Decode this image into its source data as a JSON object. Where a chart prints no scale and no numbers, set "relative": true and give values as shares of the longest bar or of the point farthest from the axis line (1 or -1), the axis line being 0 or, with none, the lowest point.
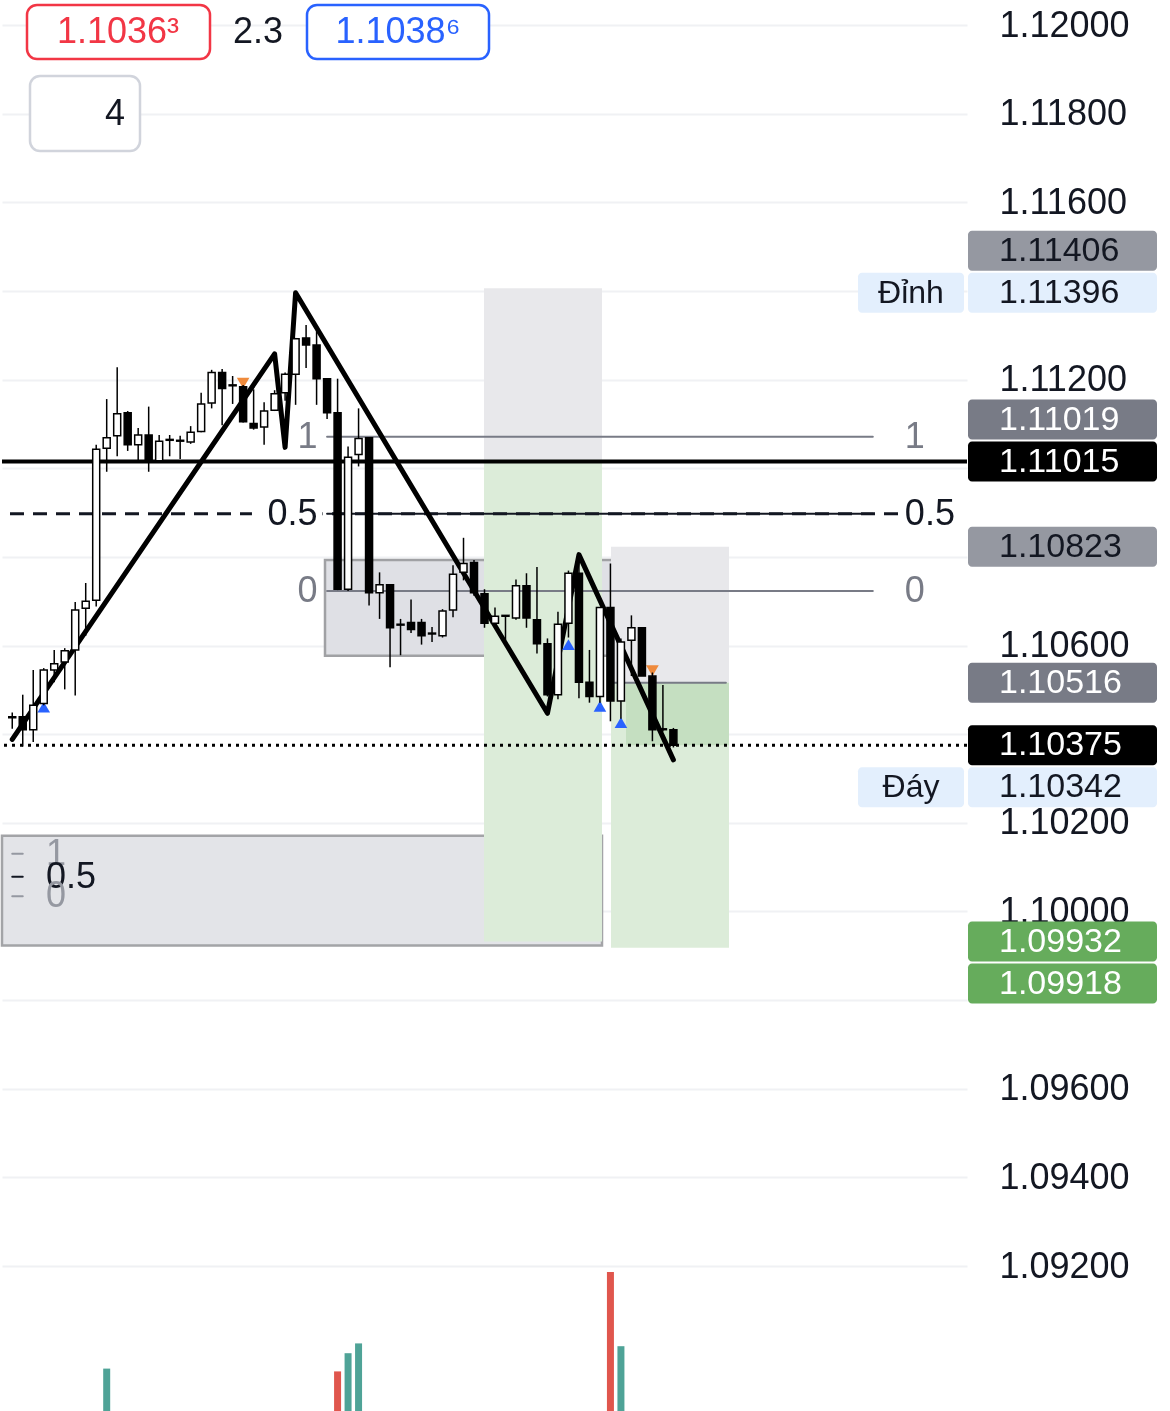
{
  "chart_data": [
    {
      "type": "candlestick",
      "categories": [
        null,
        null,
        null,
        null,
        null,
        null,
        null,
        null,
        null,
        null,
        null,
        null,
        null,
        null,
        null,
        null,
        null,
        null,
        null,
        null,
        null,
        null,
        null,
        null,
        null,
        null,
        null,
        null,
        null,
        null,
        null,
        null,
        null,
        null,
        null,
        null,
        null,
        null,
        null,
        null,
        null,
        null,
        null,
        null,
        null,
        null,
        null,
        null,
        null,
        null,
        null,
        null,
        null,
        null,
        null,
        null,
        null,
        null,
        null,
        null,
        null,
        null,
        null,
        null,
        null,
        null,
        null,
        null,
        null,
        null,
        null,
        null,
        null,
        null,
        null,
        null,
        null,
        null,
        null,
        null,
        null,
        null,
        null,
        null,
        null,
        null,
        null,
        null,
        null,
        null,
        null
      ],
      "ohlc": [
        [
          1.10437,
          1.10449,
          1.10412,
          1.10439
        ],
        [
          1.10439,
          1.10489,
          1.10372,
          1.1041
        ],
        [
          1.1041,
          1.10545,
          1.10382,
          1.10465
        ],
        [
          1.10469,
          1.10549,
          1.10465,
          1.10545
        ],
        [
          1.10545,
          1.1059,
          1.10517,
          1.10559
        ],
        [
          1.10563,
          1.10594,
          1.10501,
          1.10588
        ],
        [
          1.1059,
          1.10698,
          1.10487,
          1.1068
        ],
        [
          1.10684,
          1.10741,
          1.10622,
          1.107
        ],
        [
          1.10702,
          1.11053,
          1.10688,
          1.11043
        ],
        [
          1.11045,
          1.11156,
          1.10992,
          1.11069
        ],
        [
          1.11073,
          1.11228,
          1.11027,
          1.11123
        ],
        [
          1.11125,
          1.11129,
          1.11039,
          1.11053
        ],
        [
          1.11053,
          1.11091,
          1.11017,
          1.11075
        ],
        [
          1.11075,
          1.11139,
          1.10992,
          1.11017
        ],
        [
          1.11017,
          1.11075,
          1.11017,
          1.11061
        ],
        [
          1.11063,
          1.11075,
          1.11027,
          1.11065
        ],
        [
          1.11061,
          1.11073,
          1.11021,
          1.11063
        ],
        [
          1.11059,
          1.11095,
          1.11055,
          1.11081
        ],
        [
          1.11083,
          1.1117,
          1.11081,
          1.11145
        ],
        [
          1.11147,
          1.11222,
          1.11135,
          1.11216
        ],
        [
          1.11216,
          1.11224,
          1.11097,
          1.1118
        ],
        [
          1.11188,
          1.11208,
          1.11145,
          1.11186
        ],
        [
          1.11184,
          1.11188,
          1.11103,
          1.11105
        ],
        [
          1.11101,
          1.11178,
          1.11087,
          1.11091
        ],
        [
          1.11093,
          1.11149,
          1.11053,
          1.11129
        ],
        [
          1.11131,
          1.11176,
          1.11129,
          1.11168
        ],
        [
          1.1117,
          1.11216,
          1.11152,
          1.11212
        ],
        [
          1.11212,
          1.11294,
          1.11143,
          1.11292
        ],
        [
          1.11294,
          1.11323,
          1.11226,
          1.11278
        ],
        [
          1.11278,
          1.11309,
          1.11143,
          1.11202
        ],
        [
          1.11202,
          1.11202,
          1.11111,
          1.11125
        ],
        [
          1.11125,
          1.11202,
          1.10725,
          1.10727
        ],
        [
          1.10727,
          1.11049,
          1.10723,
          1.11025
        ],
        [
          1.11031,
          1.11135,
          1.11004,
          1.11067
        ],
        [
          1.11069,
          1.11069,
          1.1069,
          1.10719
        ],
        [
          1.10719,
          1.10765,
          1.1066,
          1.10737
        ],
        [
          1.10737,
          1.10737,
          1.10551,
          1.1064
        ],
        [
          1.10646,
          1.1066,
          1.10578,
          1.10648
        ],
        [
          1.10652,
          1.10704,
          1.10628,
          1.10636
        ],
        [
          1.10652,
          1.1066,
          1.10602,
          1.10622
        ],
        [
          1.10626,
          1.10642,
          1.10608,
          1.10628
        ],
        [
          1.10622,
          1.10682,
          1.10618,
          1.10678
        ],
        [
          1.1068,
          1.10781,
          1.10664,
          1.10761
        ],
        [
          1.10765,
          1.10843,
          1.10747,
          1.10785
        ],
        [
          1.10787,
          1.10793,
          1.10712,
          1.10719
        ],
        [
          1.10717,
          1.10727,
          1.1064,
          1.1065
        ],
        [
          1.1065,
          1.10686,
          1.10648,
          1.10666
        ],
        [
          1.10666,
          1.10668,
          1.10612,
          1.10668
        ],
        [
          1.10662,
          1.10749,
          1.10658,
          1.10735
        ],
        [
          1.10735,
          1.10763,
          1.1064,
          1.10662
        ],
        [
          1.10658,
          1.10777,
          1.10582,
          1.10604
        ],
        [
          1.10604,
          1.10616,
          1.10485,
          1.10489
        ],
        [
          1.10489,
          1.10676,
          1.10479,
          1.10648
        ],
        [
          1.1065,
          1.10769,
          1.10618,
          1.10763
        ],
        [
          1.10763,
          1.10805,
          1.10481,
          1.10517
        ],
        [
          1.10517,
          1.1059,
          1.10471,
          1.10485
        ],
        [
          1.10485,
          1.10686,
          1.10471,
          1.10686
        ],
        [
          1.10686,
          1.10785,
          1.10429,
          1.10475
        ],
        [
          1.10475,
          1.10616,
          1.10435,
          1.10608
        ],
        [
          1.10612,
          1.10668,
          1.10531,
          1.1064
        ],
        [
          1.1064,
          1.1064,
          1.10531,
          1.10531
        ],
        [
          1.10531,
          1.10539,
          1.10384,
          1.1041
        ],
        [
          1.10412,
          1.10511,
          1.10406,
          1.1041
        ],
        [
          1.1041,
          1.10414,
          1.1037,
          1.10375
        ],
        null,
        null,
        null,
        null,
        null,
        null,
        null,
        null,
        null,
        null,
        null,
        null,
        null,
        null,
        null,
        null,
        null,
        null,
        null,
        null,
        null,
        null,
        null,
        null,
        null,
        null,
        null
      ],
      "colors": [
        "#ffffff",
        "#000000",
        "#ffffff",
        "#ffffff",
        "#ffffff",
        "#ffffff",
        "#ffffff",
        "#ffffff",
        "#ffffff",
        "#ffffff",
        "#ffffff",
        "#000000",
        "#ffffff",
        "#000000",
        "#ffffff",
        "#ffffff",
        "#ffffff",
        "#ffffff",
        "#ffffff",
        "#ffffff",
        "#000000",
        "#000000",
        "#000000",
        "#000000",
        "#ffffff",
        "#ffffff",
        "#ffffff",
        "#ffffff",
        "#000000",
        "#000000",
        "#000000",
        "#000000",
        "#ffffff",
        "#ffffff",
        "#000000",
        "#ffffff",
        "#000000",
        "#ffffff",
        "#000000",
        "#000000",
        "#ffffff",
        "#ffffff",
        "#ffffff",
        "#ffffff",
        "#000000",
        "#000000",
        "#ffffff",
        "#ffffff",
        "#ffffff",
        "#000000",
        "#000000",
        "#000000",
        "#ffffff",
        "#ffffff",
        "#000000",
        "#000000",
        "#ffffff",
        "#000000",
        "#ffffff",
        "#ffffff",
        "#000000",
        "#000000",
        "#000000",
        "#000000",
        null,
        null,
        null,
        null,
        null,
        null,
        null,
        null,
        null,
        null,
        null,
        null,
        null,
        null,
        null,
        null,
        null,
        null,
        null,
        null,
        null,
        null,
        null,
        null,
        null,
        null,
        null
      ],
      "ylim": [
        1.092,
        1.12
      ],
      "yticks": [
        {
          "value": 1.092,
          "label": "1.09200"
        },
        {
          "value": 1.094,
          "label": "1.09400"
        },
        {
          "value": 1.096,
          "label": "1.09600"
        },
        {
          "value": 1.098,
          "label": null
        },
        {
          "value": 1.1,
          "label": "1.10000"
        },
        {
          "value": 1.102,
          "label": "1.10200"
        },
        {
          "value": 1.104,
          "label": null
        },
        {
          "value": 1.106,
          "label": "1.10600"
        },
        {
          "value": 1.108,
          "label": null
        },
        {
          "value": 1.11,
          "label": null
        },
        {
          "value": 1.112,
          "label": "1.11200"
        },
        {
          "value": 1.114,
          "label": null
        },
        {
          "value": 1.116,
          "label": "1.11600"
        },
        {
          "value": 1.118,
          "label": "1.11800"
        },
        {
          "value": 1.12,
          "label": "1.12000"
        }
      ],
      "grid": "y",
      "tick_labels": "y",
      "ref_lines": [
        {
          "axis": "y",
          "value": 1.11015,
          "label": "1.11015",
          "color": "#000000",
          "line_style": "solid"
        },
        {
          "axis": "y",
          "value": 1.10897,
          "color": "#131722",
          "line_style": "dashed"
        },
        {
          "axis": "y",
          "value": 1.10375,
          "label": "1.10375",
          "color": "#000000",
          "line_style": "dotted"
        }
      ],
      "bands": [
        {
          "axis": "y",
          "from": 1.09923,
          "to": 1.10171,
          "color": "#e3e4e8"
        },
        {
          "axis": "y",
          "from": 1.10577,
          "to": 1.10793,
          "color": "#dfe0e5"
        },
        {
          "axis": "y",
          "from": 1.11019,
          "to": 1.11406,
          "color": "#e8e8eb"
        },
        {
          "axis": "y",
          "from": 1.09932,
          "to": 1.11019,
          "color": "#dcecd9"
        },
        {
          "axis": "y",
          "from": 1.10516,
          "to": 1.10823,
          "color": "#e8e8eb"
        },
        {
          "axis": "y",
          "from": 1.09918,
          "to": 1.10516,
          "color": "#dcecd9"
        },
        {
          "axis": "y",
          "from": 1.10375,
          "to": 1.10516,
          "color": "#c5dfc1"
        }
      ],
      "series": [
        {
          "type": "line",
          "color": "#787b86",
          "values": [
            null,
            null,
            null,
            null,
            null,
            null,
            null,
            null,
            null,
            null,
            null,
            null,
            null,
            null,
            null,
            null,
            null,
            null,
            null,
            null,
            null,
            null,
            null,
            null,
            null,
            null,
            null,
            null,
            null,
            null,
            null,
            null,
            null,
            null,
            null,
            null,
            null,
            null,
            null,
            null,
            null,
            null,
            null,
            null,
            null,
            null,
            null,
            null,
            null,
            null,
            null,
            null,
            null,
            null,
            null,
            null,
            null,
            1.10516,
            1.10516,
            1.10516,
            1.10516,
            1.10516,
            1.10516,
            1.10516,
            1.10516,
            1.10516,
            1.10516,
            1.10516,
            1.10516,
            null,
            null,
            null,
            null,
            null,
            null,
            null,
            null,
            null,
            null,
            null,
            null,
            null,
            null,
            null,
            null,
            null,
            null,
            null,
            null,
            null,
            null
          ]
        },
        {
          "type": "line",
          "name": "1",
          "color": "#787b86",
          "values": [
            null,
            null,
            null,
            null,
            null,
            null,
            null,
            null,
            null,
            null,
            null,
            null,
            null,
            null,
            null,
            null,
            null,
            null,
            null,
            null,
            null,
            null,
            null,
            null,
            null,
            null,
            null,
            null,
            null,
            null,
            1.11071,
            1.11071,
            1.11071,
            1.11071,
            1.11071,
            1.11071,
            1.11071,
            1.11071,
            1.11071,
            1.11071,
            1.11071,
            1.11071,
            1.11071,
            1.11071,
            1.11071,
            1.11071,
            1.11071,
            1.11071,
            1.11071,
            1.11071,
            1.11071,
            1.11071,
            1.11071,
            1.11071,
            1.11071,
            1.11071,
            1.11071,
            1.11071,
            1.11071,
            1.11071,
            1.11071,
            1.11071,
            1.11071,
            1.11071,
            1.11071,
            1.11071,
            1.11071,
            1.11071,
            1.11071,
            1.11071,
            1.11071,
            1.11071,
            1.11071,
            1.11071,
            1.11071,
            1.11071,
            1.11071,
            1.11071,
            1.11071,
            1.11071,
            1.11071,
            1.11071,
            1.11071,
            null,
            null,
            null,
            null,
            null,
            null,
            null,
            null
          ]
        },
        {
          "type": "line",
          "name": "0.5",
          "color": "#131722",
          "values": [
            null,
            null,
            null,
            null,
            null,
            null,
            null,
            null,
            null,
            null,
            null,
            null,
            null,
            null,
            null,
            null,
            null,
            null,
            null,
            null,
            null,
            null,
            null,
            null,
            null,
            null,
            null,
            null,
            null,
            null,
            1.10897,
            1.10897,
            1.10897,
            1.10897,
            1.10897,
            1.10897,
            1.10897,
            1.10897,
            1.10897,
            1.10897,
            1.10897,
            1.10897,
            1.10897,
            1.10897,
            1.10897,
            1.10897,
            1.10897,
            1.10897,
            1.10897,
            1.10897,
            1.10897,
            1.10897,
            1.10897,
            1.10897,
            1.10897,
            1.10897,
            1.10897,
            1.10897,
            1.10897,
            1.10897,
            1.10897,
            1.10897,
            1.10897,
            1.10897,
            1.10897,
            1.10897,
            1.10897,
            1.10897,
            1.10897,
            1.10897,
            1.10897,
            1.10897,
            1.10897,
            1.10897,
            1.10897,
            1.10897,
            1.10897,
            1.10897,
            1.10897,
            1.10897,
            1.10897,
            1.10897,
            1.10897,
            null,
            null,
            null,
            null,
            null,
            null,
            null,
            null
          ]
        },
        {
          "type": "line",
          "name": "0",
          "color": "#787b86",
          "values": [
            null,
            null,
            null,
            null,
            null,
            null,
            null,
            null,
            null,
            null,
            null,
            null,
            null,
            null,
            null,
            null,
            null,
            null,
            null,
            null,
            null,
            null,
            null,
            null,
            null,
            null,
            null,
            null,
            null,
            null,
            1.10723,
            1.10723,
            1.10723,
            1.10723,
            1.10723,
            1.10723,
            1.10723,
            1.10723,
            1.10723,
            1.10723,
            1.10723,
            1.10723,
            1.10723,
            1.10723,
            1.10723,
            1.10723,
            1.10723,
            1.10723,
            1.10723,
            1.10723,
            1.10723,
            1.10723,
            1.10723,
            1.10723,
            1.10723,
            1.10723,
            1.10723,
            1.10723,
            1.10723,
            1.10723,
            1.10723,
            1.10723,
            1.10723,
            1.10723,
            1.10723,
            1.10723,
            1.10723,
            1.10723,
            1.10723,
            1.10723,
            1.10723,
            1.10723,
            1.10723,
            1.10723,
            1.10723,
            1.10723,
            1.10723,
            1.10723,
            1.10723,
            1.10723,
            1.10723,
            1.10723,
            1.10723,
            null,
            null,
            null,
            null,
            null,
            null,
            null,
            null
          ]
        },
        {
          "type": "line",
          "name": "1",
          "color": "#9598a1",
          "values": [
            1.1013,
            1.1013,
            null,
            null,
            null,
            null,
            null,
            null,
            null,
            null,
            null,
            null,
            null,
            null,
            null,
            null,
            null,
            null,
            null,
            null,
            null,
            null,
            null,
            null,
            null,
            null,
            null,
            null,
            null,
            null,
            null,
            null,
            null,
            null,
            null,
            null,
            null,
            null,
            null,
            null,
            null,
            null,
            null,
            null,
            null,
            null,
            null,
            null,
            null,
            null,
            null,
            null,
            null,
            null,
            null,
            null,
            null,
            null,
            null,
            null,
            null,
            null,
            null,
            null,
            null,
            null,
            null,
            null,
            null,
            null,
            null,
            null,
            null,
            null,
            null,
            null,
            null,
            null,
            null,
            null,
            null,
            null,
            null,
            null,
            null,
            null,
            null,
            null,
            null,
            null,
            null
          ]
        },
        {
          "type": "line",
          "name": "0.5",
          "color": "#131722",
          "values": [
            1.10078,
            1.10078,
            null,
            null,
            null,
            null,
            null,
            null,
            null,
            null,
            null,
            null,
            null,
            null,
            null,
            null,
            null,
            null,
            null,
            null,
            null,
            null,
            null,
            null,
            null,
            null,
            null,
            null,
            null,
            null,
            null,
            null,
            null,
            null,
            null,
            null,
            null,
            null,
            null,
            null,
            null,
            null,
            null,
            null,
            null,
            null,
            null,
            null,
            null,
            null,
            null,
            null,
            null,
            null,
            null,
            null,
            null,
            null,
            null,
            null,
            null,
            null,
            null,
            null,
            null,
            null,
            null,
            null,
            null,
            null,
            null,
            null,
            null,
            null,
            null,
            null,
            null,
            null,
            null,
            null,
            null,
            null,
            null,
            null,
            null,
            null,
            null,
            null,
            null,
            null,
            null
          ]
        },
        {
          "type": "line",
          "name": "0",
          "color": "#9598a1",
          "values": [
            1.10034,
            1.10034,
            null,
            null,
            null,
            null,
            null,
            null,
            null,
            null,
            null,
            null,
            null,
            null,
            null,
            null,
            null,
            null,
            null,
            null,
            null,
            null,
            null,
            null,
            null,
            null,
            null,
            null,
            null,
            null,
            null,
            null,
            null,
            null,
            null,
            null,
            null,
            null,
            null,
            null,
            null,
            null,
            null,
            null,
            null,
            null,
            null,
            null,
            null,
            null,
            null,
            null,
            null,
            null,
            null,
            null,
            null,
            null,
            null,
            null,
            null,
            null,
            null,
            null,
            null,
            null,
            null,
            null,
            null,
            null,
            null,
            null,
            null,
            null,
            null,
            null,
            null,
            null,
            null,
            null,
            null,
            null,
            null,
            null,
            null,
            null,
            null,
            null,
            null,
            null,
            null
          ]
        },
        {
          "type": "line",
          "color": "#000000",
          "values": [
            1.10388,
            null,
            null,
            null,
            null,
            null,
            null,
            null,
            null,
            null,
            null,
            null,
            null,
            null,
            null,
            null,
            null,
            null,
            null,
            null,
            null,
            null,
            null,
            null,
            null,
            1.11258,
            1.11047,
            1.11396,
            null,
            null,
            null,
            null,
            null,
            null,
            null,
            null,
            null,
            null,
            null,
            null,
            null,
            null,
            null,
            null,
            null,
            null,
            null,
            null,
            null,
            null,
            null,
            1.10447,
            null,
            null,
            1.10805,
            null,
            null,
            null,
            null,
            null,
            null,
            null,
            null,
            1.10342,
            null,
            null,
            null,
            null,
            null,
            null,
            null,
            null,
            null,
            null,
            null,
            null,
            null,
            null,
            null,
            null,
            null,
            null,
            null,
            null,
            null,
            null,
            null,
            null,
            null,
            null,
            null
          ]
        },
        {
          "type": "scatter",
          "color": "#2962ff",
          "marker": "triangle",
          "values": [
            null,
            null,
            null,
            1.10461,
            null,
            null,
            null,
            null,
            null,
            null,
            null,
            null,
            null,
            null,
            null,
            null,
            null,
            null,
            null,
            null,
            null,
            null,
            null,
            null,
            null,
            null,
            null,
            null,
            null,
            null,
            null,
            null,
            null,
            null,
            null,
            null,
            null,
            null,
            null,
            null,
            null,
            null,
            null,
            null,
            null,
            null,
            null,
            null,
            null,
            null,
            null,
            null,
            null,
            1.10602,
            null,
            null,
            1.10463,
            null,
            1.10426,
            null,
            null,
            null,
            null,
            null,
            null,
            null,
            null,
            null,
            null,
            null,
            null,
            null,
            null,
            null,
            null,
            null,
            null,
            null,
            null,
            null,
            null,
            null,
            null,
            null,
            null,
            null,
            null,
            null,
            null,
            null,
            null
          ]
        },
        {
          "type": "scatter",
          "color": "#ef8a3c",
          "marker": "triangle",
          "values": [
            null,
            null,
            null,
            null,
            null,
            null,
            null,
            null,
            null,
            null,
            null,
            null,
            null,
            null,
            null,
            null,
            null,
            null,
            null,
            null,
            null,
            null,
            1.11192,
            null,
            null,
            null,
            null,
            null,
            null,
            null,
            null,
            null,
            null,
            null,
            null,
            null,
            null,
            null,
            null,
            null,
            null,
            null,
            null,
            null,
            null,
            null,
            null,
            null,
            null,
            null,
            null,
            null,
            null,
            null,
            null,
            null,
            null,
            null,
            null,
            null,
            null,
            1.10543,
            null,
            null,
            null,
            null,
            null,
            null,
            null,
            null,
            null,
            null,
            null,
            null,
            null,
            null,
            null,
            null,
            null,
            null,
            null,
            null,
            null,
            null,
            null,
            null,
            null,
            null,
            null,
            null,
            null
          ]
        }
      ],
      "annotations": [
        "1.1036³",
        "2.3",
        "1.1038⁶",
        "4",
        "1.11406",
        "Đỉnh",
        "1.11396",
        "1.11019",
        "1.10823",
        "1.10516",
        "Đáy",
        "1.10342",
        "1.09932",
        "1.09918"
      ]
    },
    {
      "type": "bar",
      "relative": true,
      "tick_labels": false,
      "categories": [
        null,
        null,
        null,
        null,
        null,
        null,
        null,
        null,
        null,
        null,
        null,
        null,
        null,
        null,
        null,
        null,
        null,
        null,
        null,
        null,
        null,
        null,
        null,
        null,
        null,
        null,
        null,
        null,
        null,
        null,
        null,
        null,
        null,
        null,
        null,
        null,
        null,
        null,
        null,
        null,
        null,
        null,
        null,
        null,
        null,
        null,
        null,
        null,
        null,
        null,
        null,
        null,
        null,
        null,
        null,
        null,
        null,
        null,
        null,
        null,
        null,
        null,
        null,
        null,
        null,
        null,
        null,
        null,
        null,
        null,
        null,
        null,
        null,
        null,
        null,
        null,
        null,
        null,
        null,
        null,
        null,
        null,
        null,
        null,
        null,
        null,
        null,
        null,
        null,
        null,
        null
      ],
      "values": [
        null,
        null,
        null,
        null,
        null,
        null,
        null,
        null,
        null,
        0.31,
        null,
        null,
        null,
        null,
        null,
        null,
        null,
        null,
        null,
        null,
        null,
        null,
        null,
        null,
        null,
        null,
        null,
        null,
        null,
        null,
        null,
        0.29,
        0.42,
        0.49,
        null,
        null,
        null,
        null,
        null,
        null,
        null,
        null,
        null,
        null,
        null,
        null,
        null,
        null,
        null,
        null,
        null,
        null,
        null,
        null,
        null,
        null,
        null,
        1,
        0.47,
        null,
        null,
        null,
        null,
        null,
        null,
        null,
        null,
        null,
        null,
        null,
        null,
        null,
        null,
        null,
        null,
        null,
        null,
        null,
        null,
        null,
        null,
        null,
        null,
        null,
        null,
        null,
        null,
        null,
        null,
        null,
        null
      ],
      "colors": [
        null,
        null,
        null,
        null,
        null,
        null,
        null,
        null,
        null,
        "#4fa397",
        null,
        null,
        null,
        null,
        null,
        null,
        null,
        null,
        null,
        null,
        null,
        null,
        null,
        null,
        null,
        null,
        null,
        null,
        null,
        null,
        null,
        "#e0564d",
        "#4fa397",
        "#4fa397",
        null,
        null,
        null,
        null,
        null,
        null,
        null,
        null,
        null,
        null,
        null,
        null,
        null,
        null,
        null,
        null,
        null,
        null,
        null,
        null,
        null,
        null,
        null,
        "#e0564d",
        "#4fa397",
        null,
        null,
        null,
        null,
        null,
        null,
        null,
        null,
        null,
        null,
        null,
        null,
        null,
        null,
        null,
        null,
        null,
        null,
        null,
        null,
        null,
        null,
        null,
        null,
        null,
        null,
        null,
        null,
        null,
        null,
        null,
        null
      ]
    }
  ]
}
